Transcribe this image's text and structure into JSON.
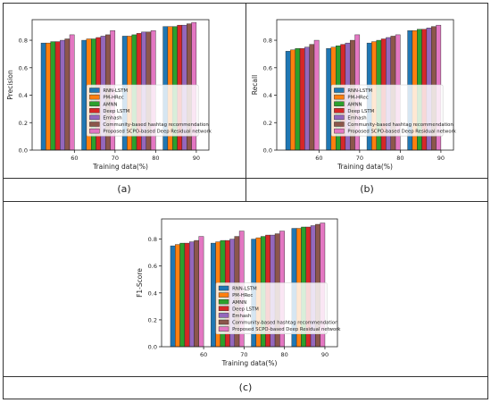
{
  "colors": {
    "series": [
      "#1f77b4",
      "#ff7f0e",
      "#2ca02c",
      "#d62728",
      "#9467bd",
      "#8c564b",
      "#e377c2"
    ],
    "frame": "#333333",
    "legend_bg": "#ffffff"
  },
  "panels": [
    {
      "caption": "(a)"
    },
    {
      "caption": "(b)"
    },
    {
      "caption": "(c)"
    }
  ],
  "chart_data": [
    {
      "type": "bar",
      "categories": [
        "60",
        "70",
        "80",
        "90"
      ],
      "xlabel": "Training data(%)",
      "ylabel": "Precision",
      "ylim": [
        0,
        0.95
      ],
      "yticks": [
        "0.0",
        "0.2",
        "0.4",
        "0.6",
        "0.8"
      ],
      "legend": "center",
      "series": [
        {
          "name": "RNN-LSTM",
          "values": [
            0.78,
            0.8,
            0.83,
            0.9
          ]
        },
        {
          "name": "PM-HRec",
          "values": [
            0.78,
            0.81,
            0.83,
            0.9
          ]
        },
        {
          "name": "AMNN",
          "values": [
            0.79,
            0.81,
            0.84,
            0.9
          ]
        },
        {
          "name": "Deep LSTM",
          "values": [
            0.79,
            0.82,
            0.85,
            0.91
          ]
        },
        {
          "name": "Emhash",
          "values": [
            0.8,
            0.83,
            0.86,
            0.91
          ]
        },
        {
          "name": "Community-based hashtag recommendation",
          "values": [
            0.81,
            0.84,
            0.86,
            0.92
          ]
        },
        {
          "name": "Proposed SCPO-based Deep Residual network",
          "values": [
            0.84,
            0.87,
            0.87,
            0.93
          ]
        }
      ]
    },
    {
      "type": "bar",
      "categories": [
        "60",
        "70",
        "80",
        "90"
      ],
      "xlabel": "Training data(%)",
      "ylabel": "Recall",
      "ylim": [
        0,
        0.95
      ],
      "yticks": [
        "0.0",
        "0.2",
        "0.4",
        "0.6",
        "0.8"
      ],
      "legend": "center",
      "series": [
        {
          "name": "RNN-LSTM",
          "values": [
            0.72,
            0.74,
            0.78,
            0.87
          ]
        },
        {
          "name": "PM-HRec",
          "values": [
            0.73,
            0.75,
            0.79,
            0.87
          ]
        },
        {
          "name": "AMNN",
          "values": [
            0.74,
            0.76,
            0.8,
            0.88
          ]
        },
        {
          "name": "Deep LSTM",
          "values": [
            0.74,
            0.77,
            0.81,
            0.88
          ]
        },
        {
          "name": "Emhash",
          "values": [
            0.75,
            0.78,
            0.82,
            0.89
          ]
        },
        {
          "name": "Community-based hashtag recommendation",
          "values": [
            0.77,
            0.8,
            0.83,
            0.9
          ]
        },
        {
          "name": "Proposed SCPO-based Deep Residual network",
          "values": [
            0.8,
            0.84,
            0.84,
            0.91
          ]
        }
      ]
    },
    {
      "type": "bar",
      "categories": [
        "60",
        "70",
        "80",
        "90"
      ],
      "xlabel": "Training data(%)",
      "ylabel": "F1-Score",
      "ylim": [
        0,
        0.95
      ],
      "yticks": [
        "0.0",
        "0.2",
        "0.4",
        "0.6",
        "0.8"
      ],
      "legend": "center",
      "series": [
        {
          "name": "RNN-LSTM",
          "values": [
            0.75,
            0.77,
            0.8,
            0.88
          ]
        },
        {
          "name": "PM-HRec",
          "values": [
            0.76,
            0.78,
            0.81,
            0.88
          ]
        },
        {
          "name": "AMNN",
          "values": [
            0.77,
            0.79,
            0.82,
            0.89
          ]
        },
        {
          "name": "Deep LSTM",
          "values": [
            0.77,
            0.79,
            0.83,
            0.89
          ]
        },
        {
          "name": "Emhash",
          "values": [
            0.78,
            0.8,
            0.83,
            0.9
          ]
        },
        {
          "name": "Community-based hashtag recommendation",
          "values": [
            0.79,
            0.82,
            0.84,
            0.91
          ]
        },
        {
          "name": "Proposed SCPO-based Deep Residual network",
          "values": [
            0.82,
            0.86,
            0.86,
            0.92
          ]
        }
      ]
    }
  ]
}
